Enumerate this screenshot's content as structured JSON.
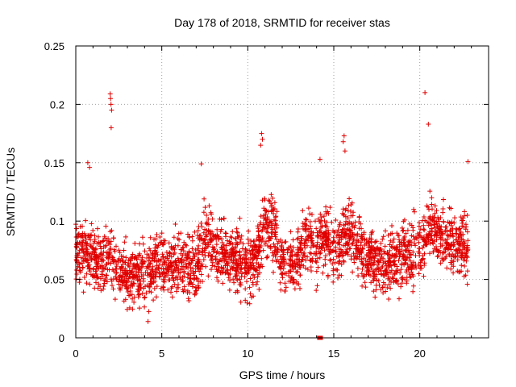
{
  "chart_data": {
    "type": "scatter",
    "title": "Day 178 of 2018, SRMTID for receiver stas",
    "xlabel": "GPS time / hours",
    "ylabel": "SRMTID / TECUs",
    "xlim": [
      0,
      24
    ],
    "ylim": [
      0,
      0.25
    ],
    "x_ticks": [
      0,
      5,
      10,
      15,
      20
    ],
    "x_tick_labels": [
      "0",
      "5",
      "10",
      "15",
      "20"
    ],
    "y_ticks": [
      0,
      0.05,
      0.1,
      0.15,
      0.2,
      0.25
    ],
    "y_tick_labels": [
      "0",
      "0.05",
      "0.1",
      "0.15",
      "0.2",
      "0.25"
    ],
    "grid": true,
    "marker": "plus",
    "series": [
      {
        "name": "SRMTID",
        "color": "#e00000",
        "trend": [
          [
            0.0,
            0.07
          ],
          [
            0.5,
            0.075
          ],
          [
            1.0,
            0.07
          ],
          [
            1.5,
            0.065
          ],
          [
            2.0,
            0.07
          ],
          [
            2.5,
            0.06
          ],
          [
            3.0,
            0.05
          ],
          [
            3.5,
            0.055
          ],
          [
            4.0,
            0.055
          ],
          [
            4.5,
            0.06
          ],
          [
            5.0,
            0.065
          ],
          [
            5.5,
            0.065
          ],
          [
            6.0,
            0.06
          ],
          [
            6.5,
            0.06
          ],
          [
            7.0,
            0.06
          ],
          [
            7.5,
            0.085
          ],
          [
            8.0,
            0.08
          ],
          [
            8.5,
            0.075
          ],
          [
            9.0,
            0.07
          ],
          [
            9.5,
            0.068
          ],
          [
            10.0,
            0.06
          ],
          [
            10.5,
            0.065
          ],
          [
            11.0,
            0.1
          ],
          [
            11.5,
            0.09
          ],
          [
            12.0,
            0.07
          ],
          [
            12.5,
            0.06
          ],
          [
            13.0,
            0.07
          ],
          [
            13.5,
            0.085
          ],
          [
            14.0,
            0.08
          ],
          [
            14.5,
            0.085
          ],
          [
            15.0,
            0.075
          ],
          [
            15.5,
            0.085
          ],
          [
            16.0,
            0.09
          ],
          [
            16.5,
            0.075
          ],
          [
            17.0,
            0.07
          ],
          [
            17.5,
            0.065
          ],
          [
            18.0,
            0.065
          ],
          [
            18.5,
            0.065
          ],
          [
            19.0,
            0.07
          ],
          [
            19.5,
            0.072
          ],
          [
            20.0,
            0.08
          ],
          [
            20.5,
            0.095
          ],
          [
            21.0,
            0.09
          ],
          [
            21.5,
            0.085
          ],
          [
            22.0,
            0.08
          ],
          [
            22.5,
            0.08
          ],
          [
            22.8,
            0.075
          ]
        ],
        "spikes": [
          [
            2.0,
            0.209
          ],
          [
            2.02,
            0.205
          ],
          [
            2.05,
            0.2
          ],
          [
            2.08,
            0.195
          ],
          [
            2.06,
            0.18
          ],
          [
            20.3,
            0.21
          ],
          [
            20.5,
            0.183
          ],
          [
            10.8,
            0.175
          ],
          [
            10.85,
            0.17
          ],
          [
            10.75,
            0.165
          ],
          [
            15.6,
            0.173
          ],
          [
            15.55,
            0.168
          ],
          [
            15.65,
            0.16
          ],
          [
            0.7,
            0.15
          ],
          [
            0.8,
            0.146
          ],
          [
            7.3,
            0.149
          ],
          [
            14.2,
            0.153
          ],
          [
            22.8,
            0.151
          ],
          [
            4.2,
            0.014
          ],
          [
            14.15,
            0.0
          ],
          [
            14.2,
            0.0
          ],
          [
            14.25,
            0.0
          ]
        ]
      }
    ]
  }
}
